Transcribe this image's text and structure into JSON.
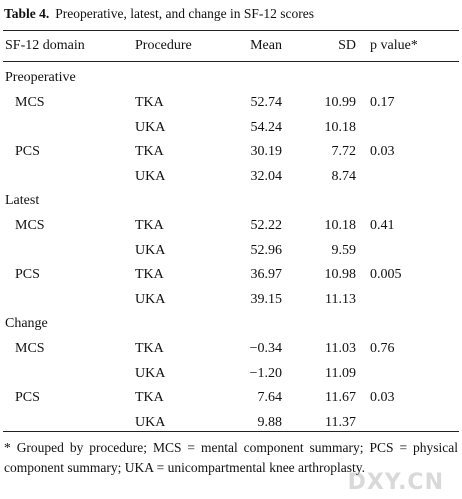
{
  "table": {
    "title_label": "Table 4.",
    "title": "Preoperative, latest, and change in SF-12 scores",
    "columns": [
      "SF-12 domain",
      "Procedure",
      "Mean",
      "SD",
      "p value*"
    ],
    "sections": [
      {
        "label": "Preoperative",
        "rows": [
          [
            "MCS",
            "TKA",
            "52.74",
            "10.99",
            "0.17"
          ],
          [
            null,
            "UKA",
            "54.24",
            "10.18",
            null
          ],
          [
            "PCS",
            "TKA",
            "30.19",
            "7.72",
            "0.03"
          ],
          [
            null,
            "UKA",
            "32.04",
            "8.74",
            null
          ]
        ]
      },
      {
        "label": "Latest",
        "rows": [
          [
            "MCS",
            "TKA",
            "52.22",
            "10.18",
            "0.41"
          ],
          [
            null,
            "UKA",
            "52.96",
            "9.59",
            null
          ],
          [
            "PCS",
            "TKA",
            "36.97",
            "10.98",
            "0.005"
          ],
          [
            null,
            "UKA",
            "39.15",
            "11.13",
            null
          ]
        ]
      },
      {
        "label": "Change",
        "rows": [
          [
            "MCS",
            "TKA",
            "−0.34",
            "11.03",
            "0.76"
          ],
          [
            null,
            "UKA",
            "−1.20",
            "11.09",
            null
          ],
          [
            "PCS",
            "TKA",
            "7.64",
            "11.67",
            "0.03"
          ],
          [
            null,
            "UKA",
            "9.88",
            "11.37",
            null
          ]
        ]
      }
    ],
    "footnote": "* Grouped by procedure; MCS = mental component summary; PCS = physical component summary; UKA = unicompartmental knee arthroplasty.",
    "watermark": "DXY.CN"
  }
}
